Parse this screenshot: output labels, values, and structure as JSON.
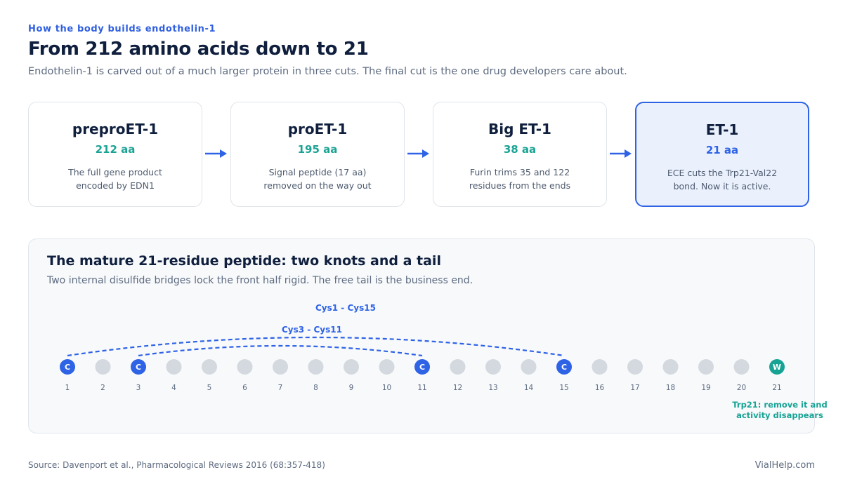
{
  "header": {
    "kicker": "How the body builds endothelin-1",
    "title": "From 212 amino acids down to 21",
    "subtitle": "Endothelin-1 is carved out of a much larger protein in three cuts. The final cut is the one drug developers care about."
  },
  "stages": [
    {
      "name": "preproET-1",
      "length": "212 aa",
      "desc_line1": "The full gene product",
      "desc_line2": "encoded by EDN1"
    },
    {
      "name": "proET-1",
      "length": "195 aa",
      "desc_line1": "Signal peptide (17 aa)",
      "desc_line2": "removed on the way out"
    },
    {
      "name": "Big ET-1",
      "length": "38 aa",
      "desc_line1": "Furin trims 35 and 122",
      "desc_line2": "residues from the ends"
    },
    {
      "name": "ET-1",
      "length": "21 aa",
      "desc_line1": "ECE cuts the Trp21-Val22",
      "desc_line2": "bond. Now it is active."
    }
  ],
  "panel": {
    "title": "The mature 21-residue peptide: two knots and a tail",
    "subtitle": "Two internal disulfide bridges lock the front half rigid. The free tail is the business end."
  },
  "peptide": {
    "residue_count": 21,
    "residues": [
      "1",
      "2",
      "3",
      "4",
      "5",
      "6",
      "7",
      "8",
      "9",
      "10",
      "11",
      "12",
      "13",
      "14",
      "15",
      "16",
      "17",
      "18",
      "19",
      "20",
      "21"
    ],
    "marked": [
      {
        "position": 1,
        "letter": "C",
        "kind": "cys"
      },
      {
        "position": 3,
        "letter": "C",
        "kind": "cys"
      },
      {
        "position": 11,
        "letter": "C",
        "kind": "cys"
      },
      {
        "position": 15,
        "letter": "C",
        "kind": "cys"
      },
      {
        "position": 21,
        "letter": "W",
        "kind": "trp"
      }
    ],
    "bridges": [
      {
        "label": "Cys1 - Cys15",
        "from": 1,
        "to": 15
      },
      {
        "label": "Cys3 - Cys11",
        "from": 3,
        "to": 11
      }
    ],
    "tail_note_line1": "Trp21: remove it and",
    "tail_note_line2": "activity disappears",
    "colors": {
      "cys": "#2f63e6",
      "trp": "#16a394",
      "plain": "#d4d9e0"
    }
  },
  "footer": {
    "source": "Source: Davenport et al., Pharmacological Reviews 2016 (68:357-418)",
    "brand": "VialHelp.com"
  }
}
